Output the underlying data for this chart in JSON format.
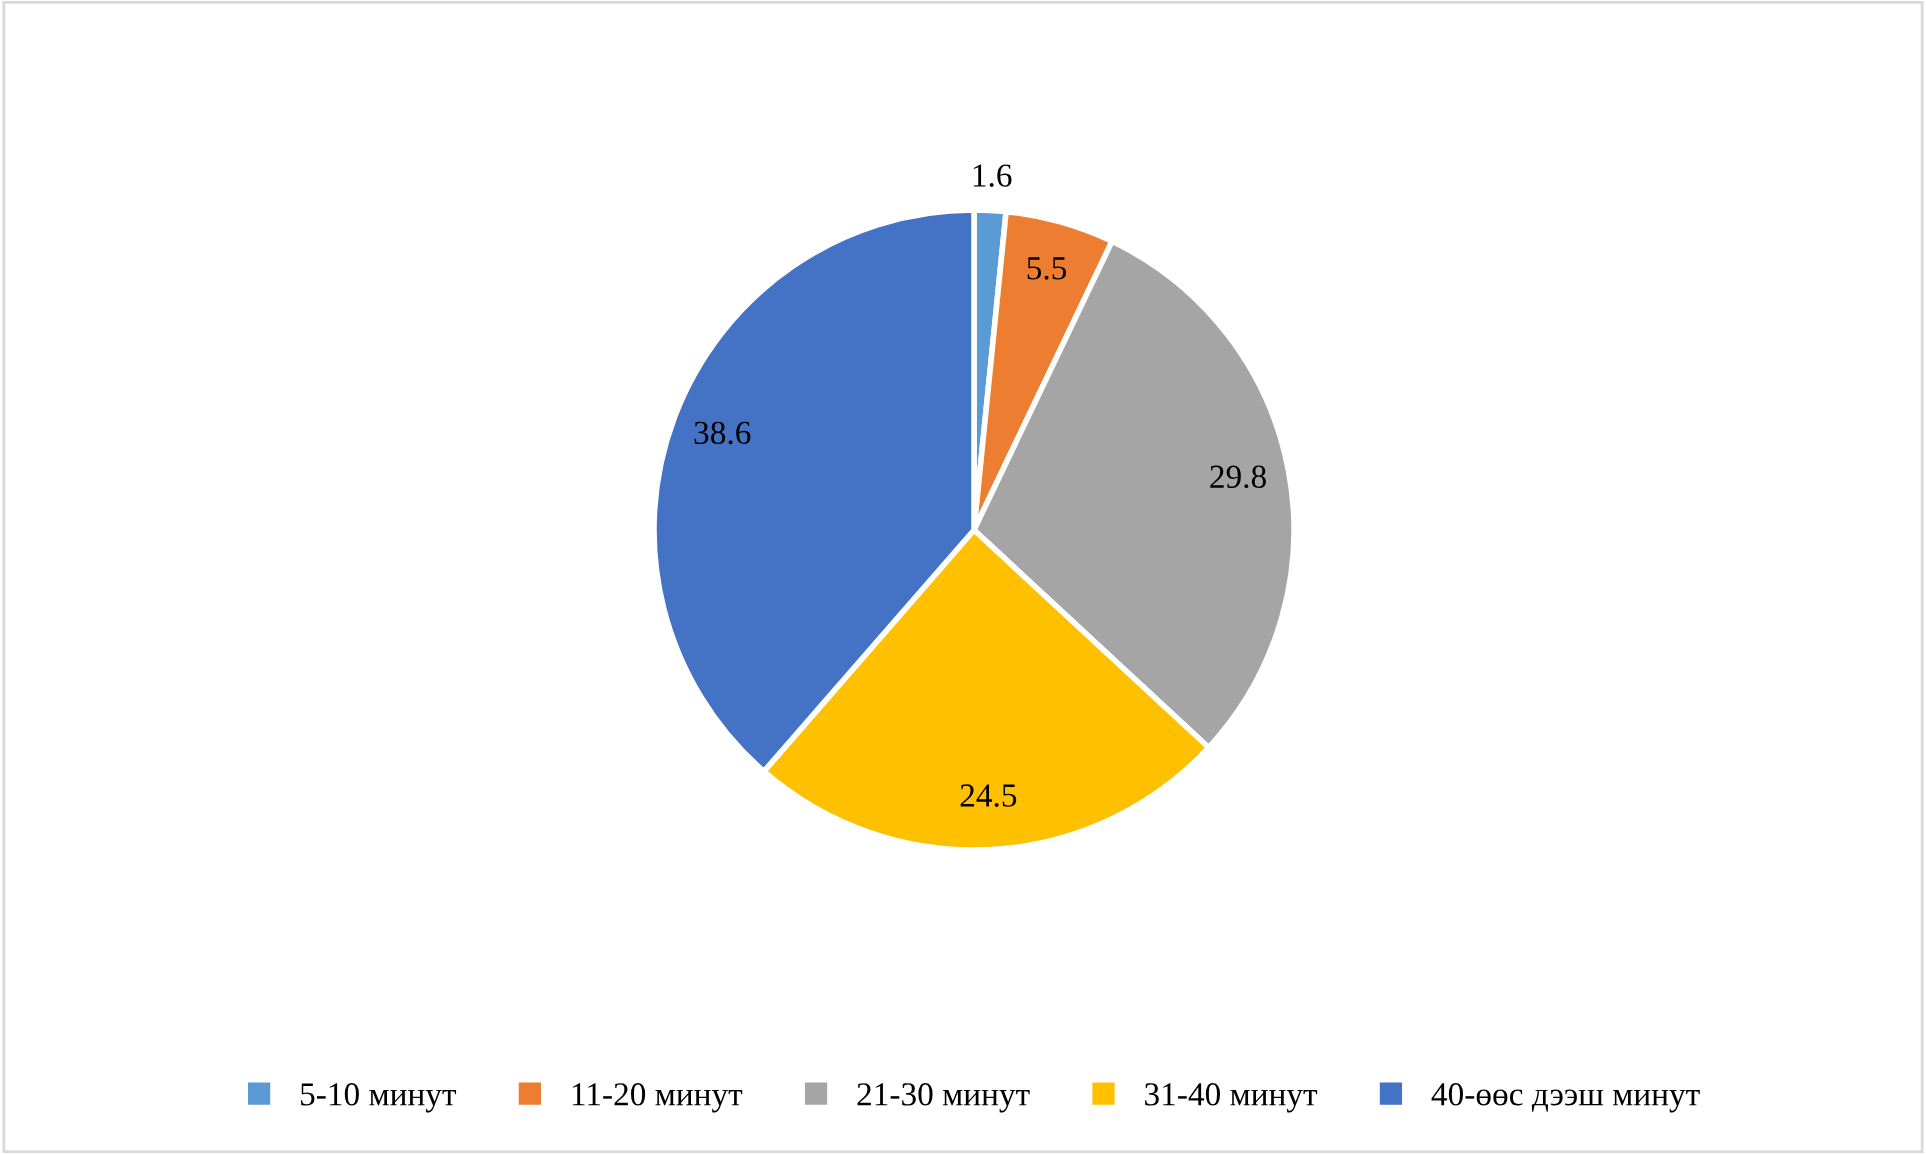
{
  "chart_data": {
    "type": "pie",
    "categories": [
      "5-10 минут",
      "11-20 минут",
      "21-30 минут",
      "31-40 минут",
      "40-өөс дээш минут"
    ],
    "values": [
      1.6,
      5.5,
      29.8,
      24.5,
      38.6
    ],
    "colors": [
      "#5b9bd5",
      "#ed7d31",
      "#a5a5a5",
      "#ffc000",
      "#4472c4"
    ],
    "data_labels": true,
    "legend": "bottom"
  }
}
